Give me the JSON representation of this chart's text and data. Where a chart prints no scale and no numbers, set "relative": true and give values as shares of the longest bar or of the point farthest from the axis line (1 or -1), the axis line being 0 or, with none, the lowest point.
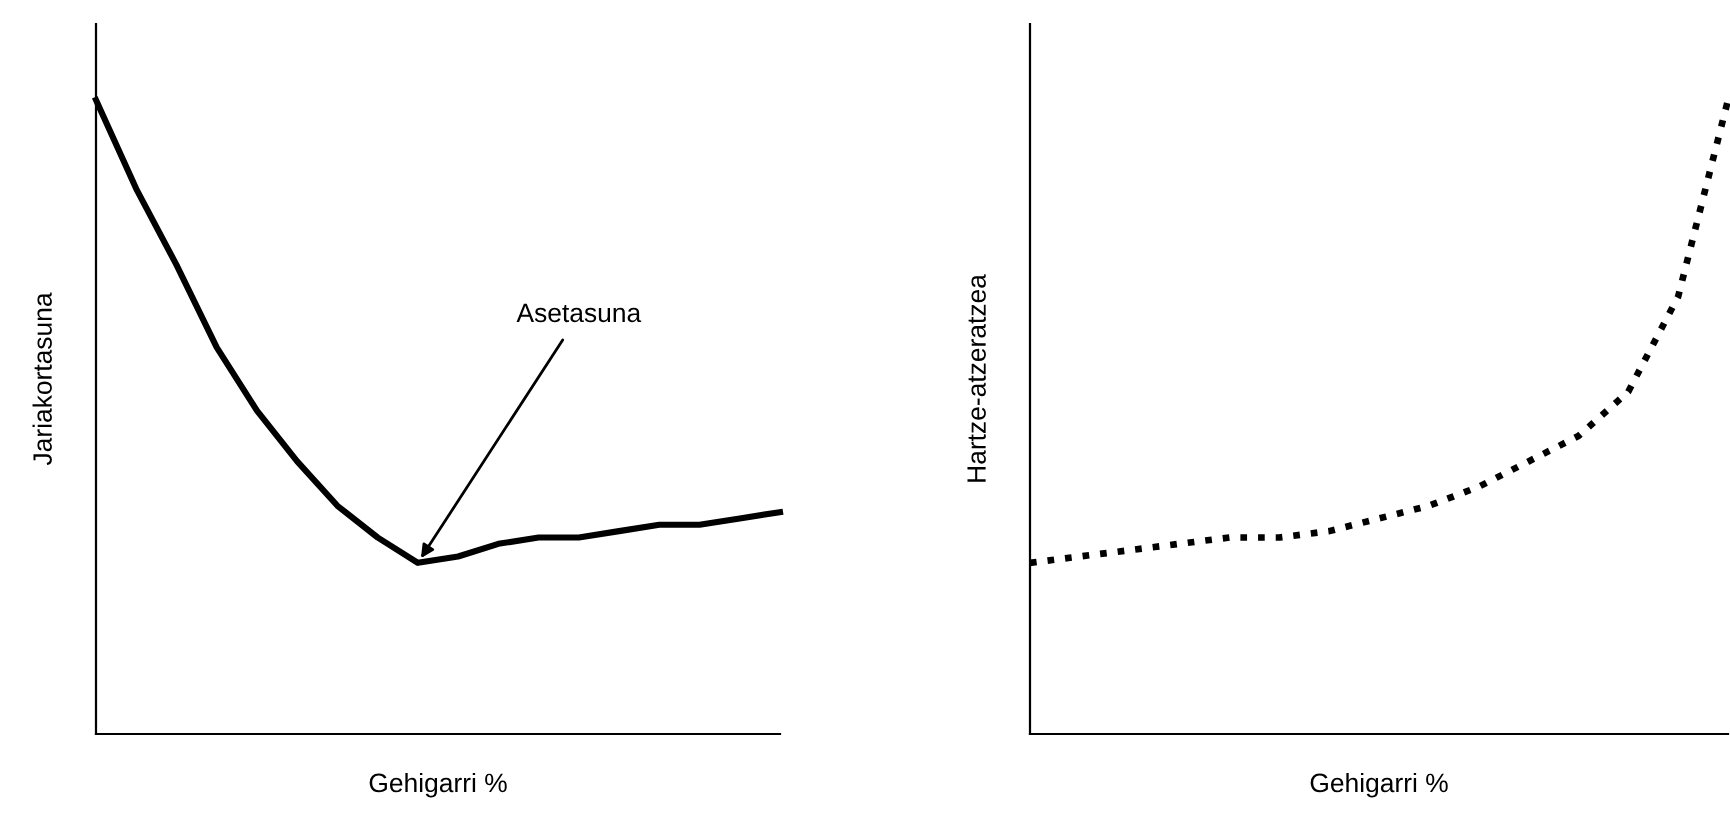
{
  "chart_data": [
    {
      "type": "line",
      "relative": true,
      "xlabel": "Gehigarri %",
      "ylabel": "Jariakortasuna",
      "categories": [
        null,
        null,
        null,
        null,
        null,
        null,
        null,
        null,
        null,
        null,
        null,
        null,
        null,
        null,
        null,
        null,
        null,
        null
      ],
      "series": [
        {
          "color": "#000000",
          "line_style": "solid",
          "values": [
            1.0,
            0.86,
            0.74,
            0.61,
            0.51,
            0.43,
            0.36,
            0.31,
            0.27,
            0.28,
            0.3,
            0.31,
            0.31,
            0.32,
            0.33,
            0.33,
            0.34,
            0.35
          ]
        }
      ],
      "annotations": [
        "Asetasuna"
      ],
      "marker": "none",
      "grid": false,
      "legend": false,
      "tick_labels": false
    },
    {
      "type": "line",
      "relative": true,
      "xlabel": "Gehigarri %",
      "ylabel": "Hartze-atzeratzea",
      "categories": [
        null,
        null,
        null,
        null,
        null,
        null,
        null,
        null,
        null,
        null,
        null,
        null,
        null,
        null,
        null
      ],
      "series": [
        {
          "color": "#000000",
          "line_style": "dotted",
          "values": [
            0.27,
            0.28,
            0.29,
            0.3,
            0.31,
            0.31,
            0.32,
            0.34,
            0.36,
            0.39,
            0.43,
            0.47,
            0.54,
            0.69,
            1.0
          ]
        }
      ],
      "marker": "none",
      "grid": false,
      "legend": false,
      "tick_labels": false
    }
  ]
}
